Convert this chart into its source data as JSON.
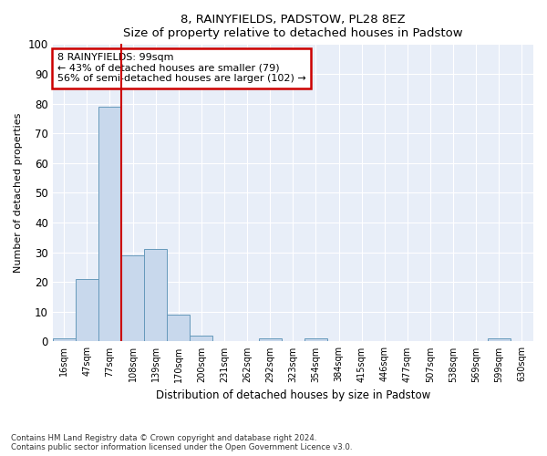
{
  "title": "8, RAINYFIELDS, PADSTOW, PL28 8EZ",
  "subtitle": "Size of property relative to detached houses in Padstow",
  "xlabel": "Distribution of detached houses by size in Padstow",
  "ylabel": "Number of detached properties",
  "bar_color": "#c8d8ec",
  "bar_edge_color": "#6699bb",
  "background_color": "#e8eef8",
  "grid_color": "#ffffff",
  "annotation_box_color": "#cc0000",
  "vline_color": "#cc0000",
  "categories": [
    "16sqm",
    "47sqm",
    "77sqm",
    "108sqm",
    "139sqm",
    "170sqm",
    "200sqm",
    "231sqm",
    "262sqm",
    "292sqm",
    "323sqm",
    "354sqm",
    "384sqm",
    "415sqm",
    "446sqm",
    "477sqm",
    "507sqm",
    "538sqm",
    "569sqm",
    "599sqm",
    "630sqm"
  ],
  "values": [
    1,
    21,
    79,
    29,
    31,
    9,
    2,
    0,
    0,
    1,
    0,
    1,
    0,
    0,
    0,
    0,
    0,
    0,
    0,
    1,
    0
  ],
  "ylim": [
    0,
    100
  ],
  "yticks": [
    0,
    10,
    20,
    30,
    40,
    50,
    60,
    70,
    80,
    90,
    100
  ],
  "vline_index": 2.5,
  "annotation_text": "8 RAINYFIELDS: 99sqm\n← 43% of detached houses are smaller (79)\n56% of semi-detached houses are larger (102) →",
  "footer_line1": "Contains HM Land Registry data © Crown copyright and database right 2024.",
  "footer_line2": "Contains public sector information licensed under the Open Government Licence v3.0."
}
